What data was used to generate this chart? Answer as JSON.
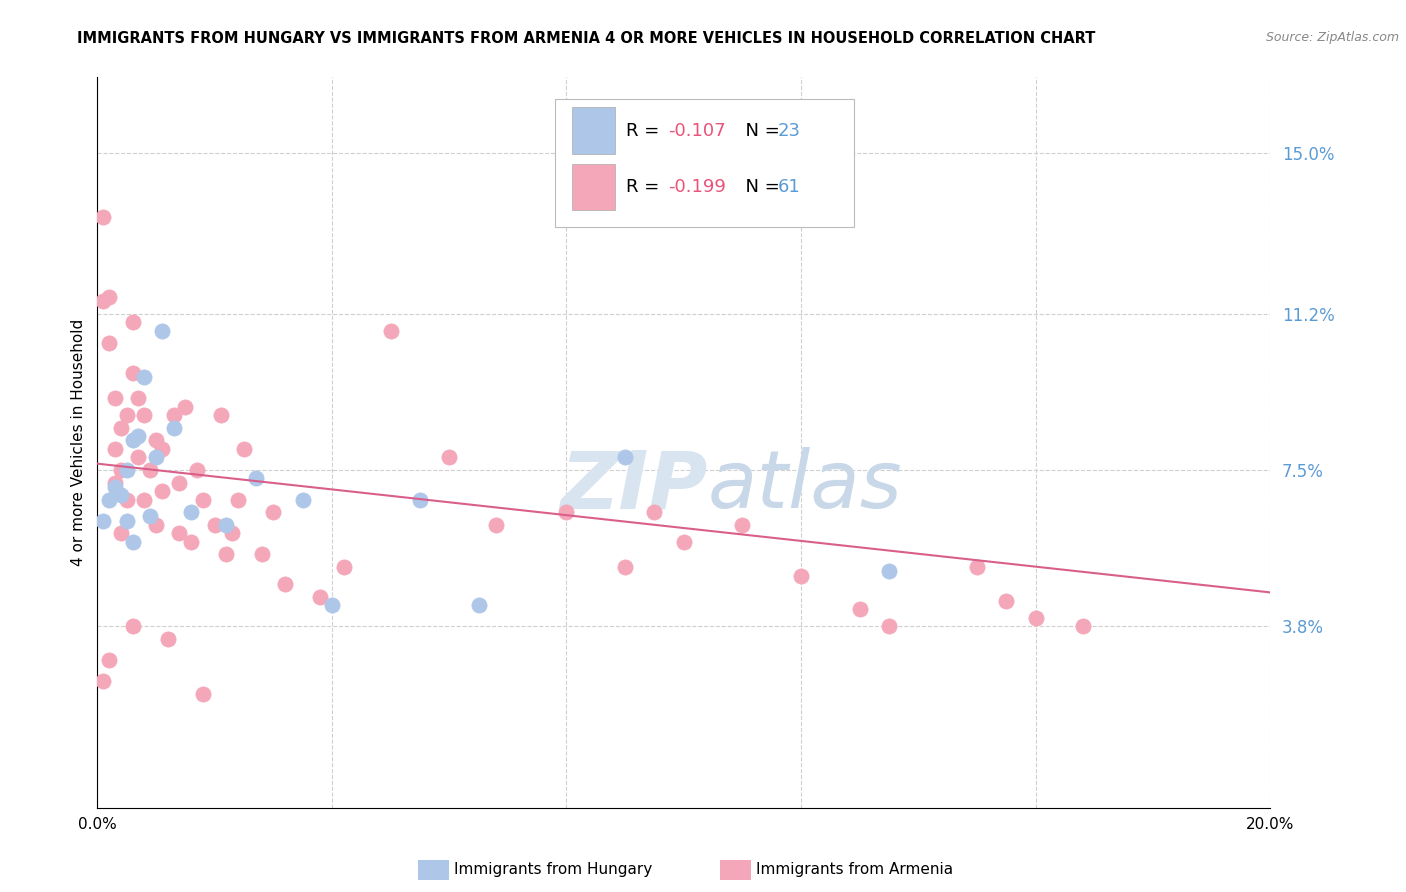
{
  "title": "IMMIGRANTS FROM HUNGARY VS IMMIGRANTS FROM ARMENIA 4 OR MORE VEHICLES IN HOUSEHOLD CORRELATION CHART",
  "source": "Source: ZipAtlas.com",
  "ylabel": "4 or more Vehicles in Household",
  "xlim": [
    0.0,
    0.2
  ],
  "ylim": [
    -0.005,
    0.168
  ],
  "xticks": [
    0.0,
    0.04,
    0.08,
    0.12,
    0.16,
    0.2
  ],
  "xtick_labels": [
    "0.0%",
    "",
    "",
    "",
    "",
    "20.0%"
  ],
  "ytick_labels_right": [
    "3.8%",
    "7.5%",
    "11.2%",
    "15.0%"
  ],
  "yticks_right": [
    0.038,
    0.075,
    0.112,
    0.15
  ],
  "legend_r_hungary": "-0.107",
  "legend_n_hungary": "23",
  "legend_r_armenia": "-0.199",
  "legend_n_armenia": "61",
  "hungary_color": "#aec6e8",
  "armenia_color": "#f4a7b9",
  "trendline_color": "#d95f8a",
  "background_color": "#ffffff",
  "grid_color": "#d0d0d0",
  "watermark_color": "#d8e4f0",
  "hungary_x": [
    0.001,
    0.002,
    0.003,
    0.004,
    0.005,
    0.005,
    0.006,
    0.006,
    0.007,
    0.008,
    0.009,
    0.01,
    0.011,
    0.013,
    0.016,
    0.022,
    0.027,
    0.035,
    0.04,
    0.055,
    0.065,
    0.09,
    0.135
  ],
  "hungary_y": [
    0.063,
    0.068,
    0.071,
    0.069,
    0.075,
    0.063,
    0.058,
    0.082,
    0.083,
    0.097,
    0.064,
    0.078,
    0.108,
    0.085,
    0.065,
    0.062,
    0.073,
    0.068,
    0.043,
    0.068,
    0.043,
    0.078,
    0.051
  ],
  "armenia_x": [
    0.001,
    0.001,
    0.002,
    0.002,
    0.003,
    0.003,
    0.003,
    0.004,
    0.004,
    0.004,
    0.005,
    0.005,
    0.006,
    0.006,
    0.007,
    0.007,
    0.008,
    0.008,
    0.009,
    0.01,
    0.01,
    0.011,
    0.011,
    0.013,
    0.014,
    0.014,
    0.015,
    0.016,
    0.017,
    0.018,
    0.02,
    0.021,
    0.022,
    0.023,
    0.024,
    0.025,
    0.028,
    0.03,
    0.032,
    0.038,
    0.042,
    0.05,
    0.06,
    0.068,
    0.08,
    0.09,
    0.095,
    0.1,
    0.11,
    0.12,
    0.13,
    0.135,
    0.15,
    0.155,
    0.16,
    0.168,
    0.001,
    0.002,
    0.006,
    0.012,
    0.018
  ],
  "armenia_y": [
    0.135,
    0.115,
    0.105,
    0.116,
    0.072,
    0.092,
    0.08,
    0.085,
    0.075,
    0.06,
    0.088,
    0.068,
    0.098,
    0.11,
    0.092,
    0.078,
    0.088,
    0.068,
    0.075,
    0.082,
    0.062,
    0.08,
    0.07,
    0.088,
    0.072,
    0.06,
    0.09,
    0.058,
    0.075,
    0.068,
    0.062,
    0.088,
    0.055,
    0.06,
    0.068,
    0.08,
    0.055,
    0.065,
    0.048,
    0.045,
    0.052,
    0.108,
    0.078,
    0.062,
    0.065,
    0.052,
    0.065,
    0.058,
    0.062,
    0.05,
    0.042,
    0.038,
    0.052,
    0.044,
    0.04,
    0.038,
    0.025,
    0.03,
    0.038,
    0.035,
    0.022
  ],
  "trendline_x": [
    0.0,
    0.2
  ],
  "trendline_y_start": 0.0765,
  "trendline_y_end": 0.046
}
